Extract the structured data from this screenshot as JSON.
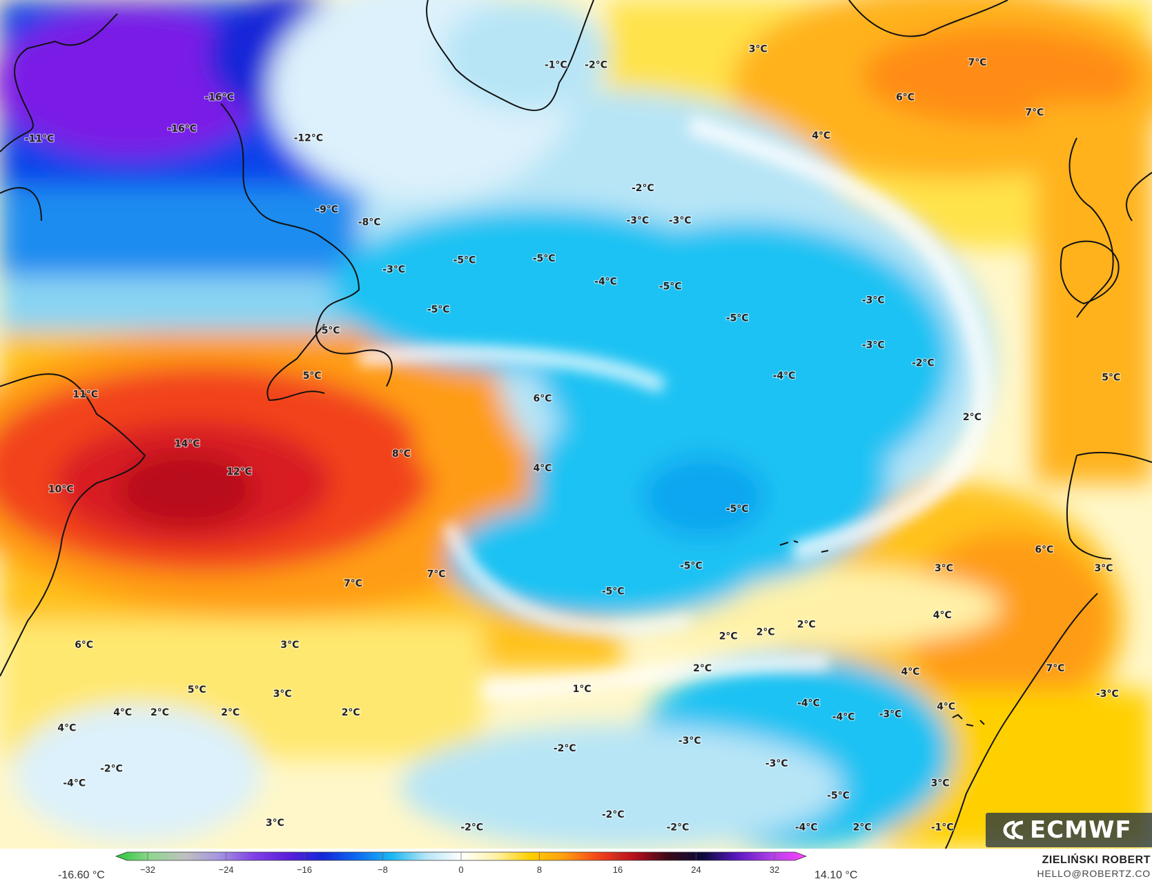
{
  "colors": {
    "ocean_base": "#fff7c9",
    "cold_vlight": "#dcf1fb",
    "cold_light": "#b7e5f6",
    "cold_mid": "#88d4f3",
    "cold_strong": "#1cc2f3",
    "cold_deep": "#0da6f0",
    "very_cold": "#0d42ea",
    "extreme_cold": "#7a1fe6",
    "warm_1": "#fff2a8",
    "warm_2": "#ffe34c",
    "warm_3": "#ffc21a",
    "warm_4": "#ff9c12",
    "warm_5": "#ff7a10",
    "warm_6": "#f2421a",
    "warm_7": "#d81a24",
    "warm_8": "#b8101e",
    "coast": "#111111"
  },
  "temperature_labels": [
    {
      "text": "-16°C",
      "lon": -70.5,
      "lat": 58.5
    },
    {
      "text": "-16°C",
      "lon": -75.5,
      "lat": 54.8
    },
    {
      "text": "-11°C",
      "lon": -94.7,
      "lat": 53.6
    },
    {
      "text": "-12°C",
      "lon": -58.5,
      "lat": 53.7
    },
    {
      "text": "-9°C",
      "lon": -56.0,
      "lat": 45.3
    },
    {
      "text": "-8°C",
      "lon": -50.3,
      "lat": 43.8
    },
    {
      "text": "-3°C",
      "lon": -47.0,
      "lat": 38.2
    },
    {
      "text": "-5°C",
      "lon": -41.0,
      "lat": 33.5
    },
    {
      "text": "5°C",
      "lon": -55.5,
      "lat": 31.0
    },
    {
      "text": "-1°C",
      "lon": -25.2,
      "lat": 62.3
    },
    {
      "text": "-2°C",
      "lon": -19.8,
      "lat": 62.3
    },
    {
      "text": "3°C",
      "lon": 2.0,
      "lat": 64.2
    },
    {
      "text": "7°C",
      "lon": 31.5,
      "lat": 62.6
    },
    {
      "text": "6°C",
      "lon": 21.8,
      "lat": 58.5
    },
    {
      "text": "7°C",
      "lon": 39.2,
      "lat": 56.7
    },
    {
      "text": "4°C",
      "lon": 10.5,
      "lat": 54.0
    },
    {
      "text": "-2°C",
      "lon": -13.5,
      "lat": 47.8
    },
    {
      "text": "-3°C",
      "lon": -14.2,
      "lat": 44.0
    },
    {
      "text": "-3°C",
      "lon": -8.5,
      "lat": 44.0
    },
    {
      "text": "-5°C",
      "lon": -37.5,
      "lat": 39.3
    },
    {
      "text": "-5°C",
      "lon": -26.8,
      "lat": 39.5
    },
    {
      "text": "-4°C",
      "lon": -18.5,
      "lat": 36.8
    },
    {
      "text": "-5°C",
      "lon": -9.8,
      "lat": 36.2
    },
    {
      "text": "-5°C",
      "lon": -0.8,
      "lat": 32.5
    },
    {
      "text": "-3°C",
      "lon": 17.5,
      "lat": 34.6
    },
    {
      "text": "-3°C",
      "lon": 17.5,
      "lat": 29.3
    },
    {
      "text": "-2°C",
      "lon": 24.2,
      "lat": 27.2
    },
    {
      "text": "-4°C",
      "lon": 5.5,
      "lat": 25.7
    },
    {
      "text": "5°C",
      "lon": 49.5,
      "lat": 25.5
    },
    {
      "text": "11°C",
      "lon": -88.5,
      "lat": 23.5
    },
    {
      "text": "5°C",
      "lon": -58.0,
      "lat": 25.7
    },
    {
      "text": "6°C",
      "lon": -27.0,
      "lat": 23.0
    },
    {
      "text": "14°C",
      "lon": -74.8,
      "lat": 17.7
    },
    {
      "text": "8°C",
      "lon": -46.0,
      "lat": 16.5
    },
    {
      "text": "12°C",
      "lon": -67.8,
      "lat": 14.4
    },
    {
      "text": "4°C",
      "lon": -27.0,
      "lat": 14.8
    },
    {
      "text": "10°C",
      "lon": -91.8,
      "lat": 12.3
    },
    {
      "text": "2°C",
      "lon": 30.8,
      "lat": 20.8
    },
    {
      "text": "-5°C",
      "lon": -0.8,
      "lat": 10.0
    },
    {
      "text": "6°C",
      "lon": 40.5,
      "lat": 5.2
    },
    {
      "text": "3°C",
      "lon": 27.0,
      "lat": 3.0
    },
    {
      "text": "3°C",
      "lon": 48.5,
      "lat": 3.0
    },
    {
      "text": "-5°C",
      "lon": -7.0,
      "lat": 3.3
    },
    {
      "text": "7°C",
      "lon": -52.5,
      "lat": 1.2
    },
    {
      "text": "7°C",
      "lon": -41.3,
      "lat": 2.3
    },
    {
      "text": "-5°C",
      "lon": -17.5,
      "lat": 0.3
    },
    {
      "text": "4°C",
      "lon": 26.8,
      "lat": -2.5
    },
    {
      "text": "2°C",
      "lon": -2.0,
      "lat": -5.0
    },
    {
      "text": "2°C",
      "lon": 3.0,
      "lat": -4.5
    },
    {
      "text": "2°C",
      "lon": 8.5,
      "lat": -3.6
    },
    {
      "text": "6°C",
      "lon": -88.7,
      "lat": -6.0
    },
    {
      "text": "3°C",
      "lon": -61.0,
      "lat": -6.0
    },
    {
      "text": "4°C",
      "lon": 22.5,
      "lat": -9.2
    },
    {
      "text": "7°C",
      "lon": 42.0,
      "lat": -8.8
    },
    {
      "text": "2°C",
      "lon": -5.5,
      "lat": -8.8
    },
    {
      "text": "5°C",
      "lon": -73.5,
      "lat": -11.3
    },
    {
      "text": "3°C",
      "lon": -62.0,
      "lat": -11.8
    },
    {
      "text": "1°C",
      "lon": -21.7,
      "lat": -11.2
    },
    {
      "text": "-3°C",
      "lon": 49.0,
      "lat": -11.8
    },
    {
      "text": "4°C",
      "lon": -83.5,
      "lat": -14.0
    },
    {
      "text": "2°C",
      "lon": -78.5,
      "lat": -14.0
    },
    {
      "text": "2°C",
      "lon": -69.0,
      "lat": -14.0
    },
    {
      "text": "2°C",
      "lon": -52.8,
      "lat": -14.0
    },
    {
      "text": "-4°C",
      "lon": 8.8,
      "lat": -12.9
    },
    {
      "text": "-4°C",
      "lon": 13.5,
      "lat": -14.5
    },
    {
      "text": "-3°C",
      "lon": 19.8,
      "lat": -14.2
    },
    {
      "text": "4°C",
      "lon": 27.3,
      "lat": -13.3
    },
    {
      "text": "4°C",
      "lon": -91.0,
      "lat": -15.8
    },
    {
      "text": "-2°C",
      "lon": -24.0,
      "lat": -18.2
    },
    {
      "text": "-3°C",
      "lon": -7.2,
      "lat": -17.3
    },
    {
      "text": "-2°C",
      "lon": -85.0,
      "lat": -20.6
    },
    {
      "text": "-3°C",
      "lon": 4.5,
      "lat": -20.0
    },
    {
      "text": "-4°C",
      "lon": -90.0,
      "lat": -22.3
    },
    {
      "text": "3°C",
      "lon": 26.5,
      "lat": -22.3
    },
    {
      "text": "-5°C",
      "lon": 12.8,
      "lat": -23.8
    },
    {
      "text": "-2°C",
      "lon": -17.5,
      "lat": -26.0
    },
    {
      "text": "3°C",
      "lon": -63.0,
      "lat": -27.0
    },
    {
      "text": "-2°C",
      "lon": -36.5,
      "lat": -27.5
    },
    {
      "text": "-2°C",
      "lon": -8.8,
      "lat": -27.5
    },
    {
      "text": "-4°C",
      "lon": 8.5,
      "lat": -27.5
    },
    {
      "text": "2°C",
      "lon": 16.0,
      "lat": -27.5
    },
    {
      "text": "-1°C",
      "lon": 26.8,
      "lat": -27.5
    }
  ],
  "colorbar": {
    "min_value": "-16.60 °C",
    "max_value": "14.10 °C",
    "tick_labels": [
      "−32",
      "−24",
      "−16",
      "−8",
      "0",
      "8",
      "16",
      "24",
      "32"
    ],
    "stops": [
      "#2bc53a",
      "#8fd78f",
      "#c0c0c0",
      "#a494e2",
      "#8040e6",
      "#5a1ed8",
      "#1428d8",
      "#0d6cf0",
      "#1cb8f3",
      "#b7e5f6",
      "#ffffff",
      "#fff2a8",
      "#ffd000",
      "#ff9c12",
      "#f2421a",
      "#b8101e",
      "#3a0a18",
      "#0a0a3a",
      "#5a18c0",
      "#b040e8",
      "#ff40ff"
    ]
  },
  "credit": {
    "name": "ZIELIŃSKI ROBERT",
    "email": "HELLO@ROBERTZ.CO"
  },
  "logo": {
    "text": "ECMWF",
    "icon": "ecmwf-logo-icon"
  }
}
